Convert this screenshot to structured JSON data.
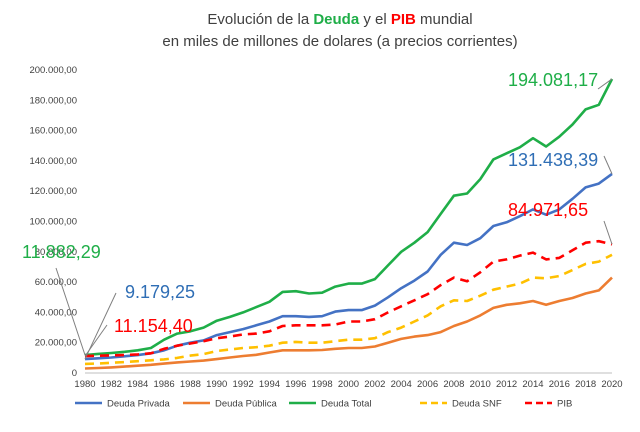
{
  "chart_data": {
    "type": "line",
    "title": {
      "line1_prefix": "Evolución de la ",
      "line1_deuda": "Deuda",
      "line1_mid": " y el ",
      "line1_pib": "PIB",
      "line1_suffix": " mundial",
      "line2": "en miles de millones de dolares (a precios corrientes)"
    },
    "xlabel": "",
    "ylabel": "",
    "ylim": [
      0,
      200000
    ],
    "grid": false,
    "legend_position": "bottom",
    "y_ticks": [
      "0",
      "20.000,00",
      "40.000,00",
      "60.000,00",
      "80.000,00",
      "100.000,00",
      "120.000,00",
      "140.000,00",
      "160.000,00",
      "180.000,00",
      "200.000,00"
    ],
    "y_tick_values": [
      0,
      20000,
      40000,
      60000,
      80000,
      100000,
      120000,
      140000,
      160000,
      180000,
      200000
    ],
    "x_tick_labels": [
      "1980",
      "1982",
      "1984",
      "1986",
      "1988",
      "1990",
      "1992",
      "1994",
      "1996",
      "1998",
      "2000",
      "2002",
      "2004",
      "2006",
      "2008",
      "2010",
      "2012",
      "2014",
      "2016",
      "2018",
      "2020"
    ],
    "x": [
      1980,
      1981,
      1982,
      1983,
      1984,
      1985,
      1986,
      1987,
      1988,
      1989,
      1990,
      1991,
      1992,
      1993,
      1994,
      1995,
      1996,
      1997,
      1998,
      1999,
      2000,
      2001,
      2002,
      2003,
      2004,
      2005,
      2006,
      2007,
      2008,
      2009,
      2010,
      2011,
      2012,
      2013,
      2014,
      2015,
      2016,
      2017,
      2018,
      2019,
      2020
    ],
    "series": [
      {
        "name": "Deuda Privada",
        "color": "#4472C4",
        "dash": "solid",
        "values": [
          9179,
          9700,
          10200,
          11000,
          11800,
          13000,
          15000,
          18000,
          20000,
          21500,
          25000,
          27000,
          29000,
          31500,
          34000,
          37500,
          37500,
          37000,
          37500,
          40500,
          41500,
          41500,
          44500,
          50000,
          56000,
          61000,
          67000,
          78000,
          86000,
          84500,
          89000,
          97000,
          99500,
          103500,
          108000,
          104500,
          108000,
          115000,
          122500,
          125000,
          131438
        ]
      },
      {
        "name": "Deuda Pública",
        "color": "#ED7D31",
        "dash": "solid",
        "values": [
          3000,
          3300,
          3700,
          4200,
          4800,
          5400,
          6200,
          7000,
          7600,
          8200,
          9200,
          10200,
          11200,
          12000,
          13500,
          15000,
          15000,
          15000,
          15200,
          16000,
          16500,
          16500,
          17500,
          20000,
          22500,
          24000,
          25000,
          27000,
          31000,
          34000,
          38000,
          43000,
          45000,
          46000,
          47500,
          45000,
          47500,
          49500,
          52500,
          54500,
          63000
        ]
      },
      {
        "name": "Deuda Total",
        "color": "#1FAE48",
        "dash": "solid",
        "values": [
          11882,
          12600,
          13200,
          14000,
          15000,
          16500,
          22000,
          26000,
          27500,
          30000,
          34500,
          37000,
          40000,
          43500,
          47000,
          53500,
          54000,
          52500,
          53000,
          57000,
          59000,
          59000,
          62000,
          71000,
          80000,
          86000,
          93000,
          105000,
          117000,
          118500,
          128000,
          141000,
          145000,
          149000,
          155000,
          149500,
          156000,
          164000,
          174000,
          177000,
          194081
        ]
      },
      {
        "name": "Deuda SNF",
        "color": "#FFC000",
        "dash": "dashed",
        "values": [
          6000,
          6300,
          6700,
          7200,
          7800,
          8400,
          9000,
          10000,
          11500,
          12500,
          14500,
          15500,
          16500,
          17000,
          18000,
          20000,
          20500,
          20000,
          20000,
          21000,
          22000,
          22000,
          23000,
          27000,
          30000,
          34000,
          38000,
          44000,
          48000,
          47500,
          51000,
          55000,
          57000,
          59000,
          63000,
          62500,
          64000,
          68000,
          72000,
          73500,
          78000
        ]
      },
      {
        "name": "PIB",
        "color": "#FF0000",
        "dash": "dashed",
        "values": [
          11154,
          11400,
          11600,
          11900,
          12300,
          13000,
          16000,
          18000,
          19500,
          21000,
          23000,
          24000,
          25500,
          26000,
          27500,
          31000,
          31500,
          31500,
          31500,
          32000,
          34000,
          34000,
          35500,
          40000,
          44000,
          48000,
          52000,
          58000,
          63000,
          60500,
          66500,
          73500,
          75000,
          77500,
          79500,
          75000,
          76000,
          81000,
          86000,
          87000,
          84971
        ]
      }
    ],
    "annotations": [
      {
        "text": "194.081,17",
        "color": "#1FAE48",
        "series": "Deuda Total"
      },
      {
        "text": "131.438,39",
        "color": "#2F6EB5",
        "series": "Deuda Privada"
      },
      {
        "text": "84.971,65",
        "color": "#FF0000",
        "series": "PIB"
      },
      {
        "text": "11.882,29",
        "color": "#1FAE48",
        "series": "Deuda Total"
      },
      {
        "text": "9.179,25",
        "color": "#2F6EB5",
        "series": "Deuda Privada"
      },
      {
        "text": "11.154,40",
        "color": "#FF0000",
        "series": "PIB"
      }
    ]
  }
}
